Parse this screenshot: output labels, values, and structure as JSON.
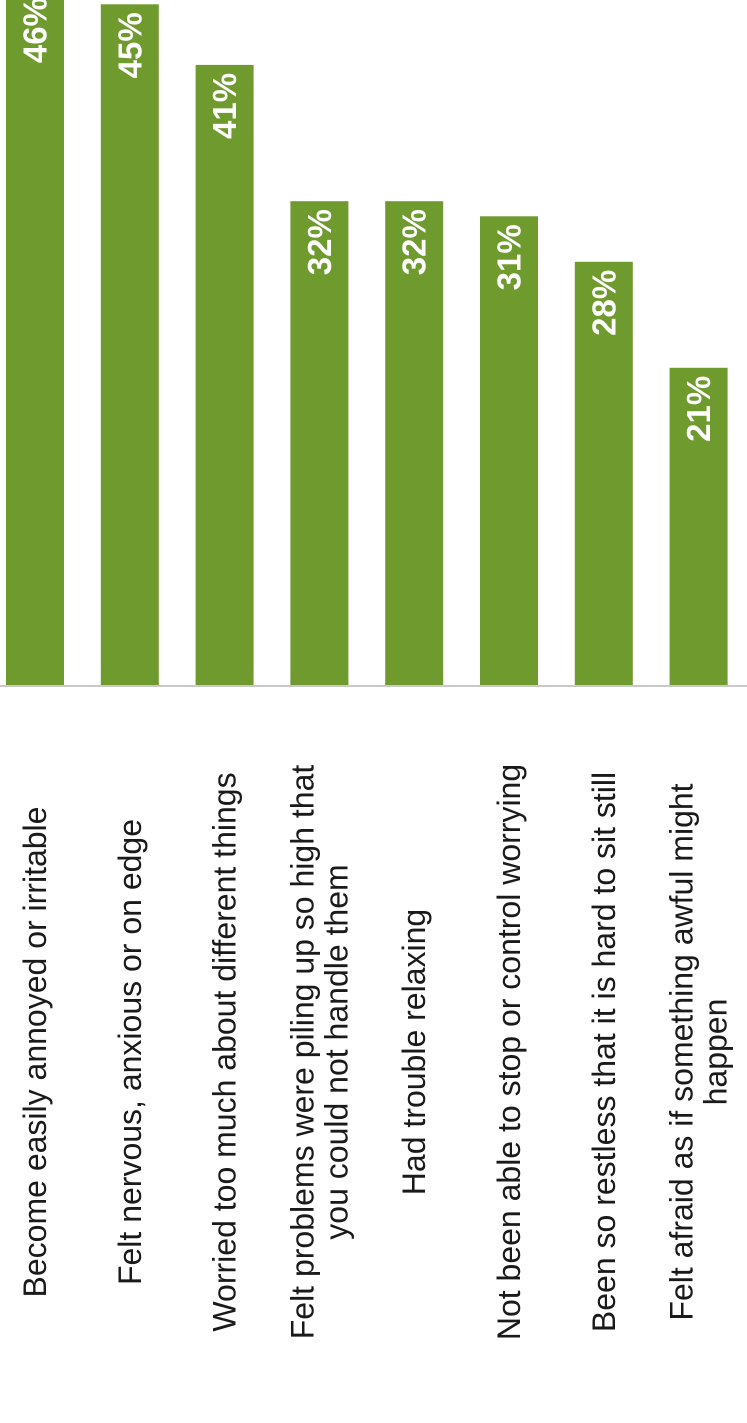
{
  "chart_data": {
    "type": "bar",
    "orientation": "horizontal (rotated 90° counter-clockwise)",
    "categories": [
      [
        "Become easily annoyed or irritable"
      ],
      [
        "Felt nervous, anxious or on edge"
      ],
      [
        "Worried too much about different things"
      ],
      [
        "Felt problems were piling up so high that",
        "you could not handle them"
      ],
      [
        "Had trouble relaxing"
      ],
      [
        "Not been able to stop or control worrying"
      ],
      [
        "Been so restless that it is hard to sit still"
      ],
      [
        "Felt afraid as if something awful might",
        "happen"
      ]
    ],
    "values": [
      46,
      45,
      41,
      32,
      32,
      31,
      28,
      21
    ],
    "value_labels": [
      "46%",
      "45%",
      "41%",
      "32%",
      "32%",
      "31%",
      "28%",
      "21%"
    ],
    "xlim": [
      0,
      50
    ],
    "grid": false,
    "legend": "none",
    "bar_color": "#6f9a2e",
    "value_label_color": "#ffffff"
  }
}
